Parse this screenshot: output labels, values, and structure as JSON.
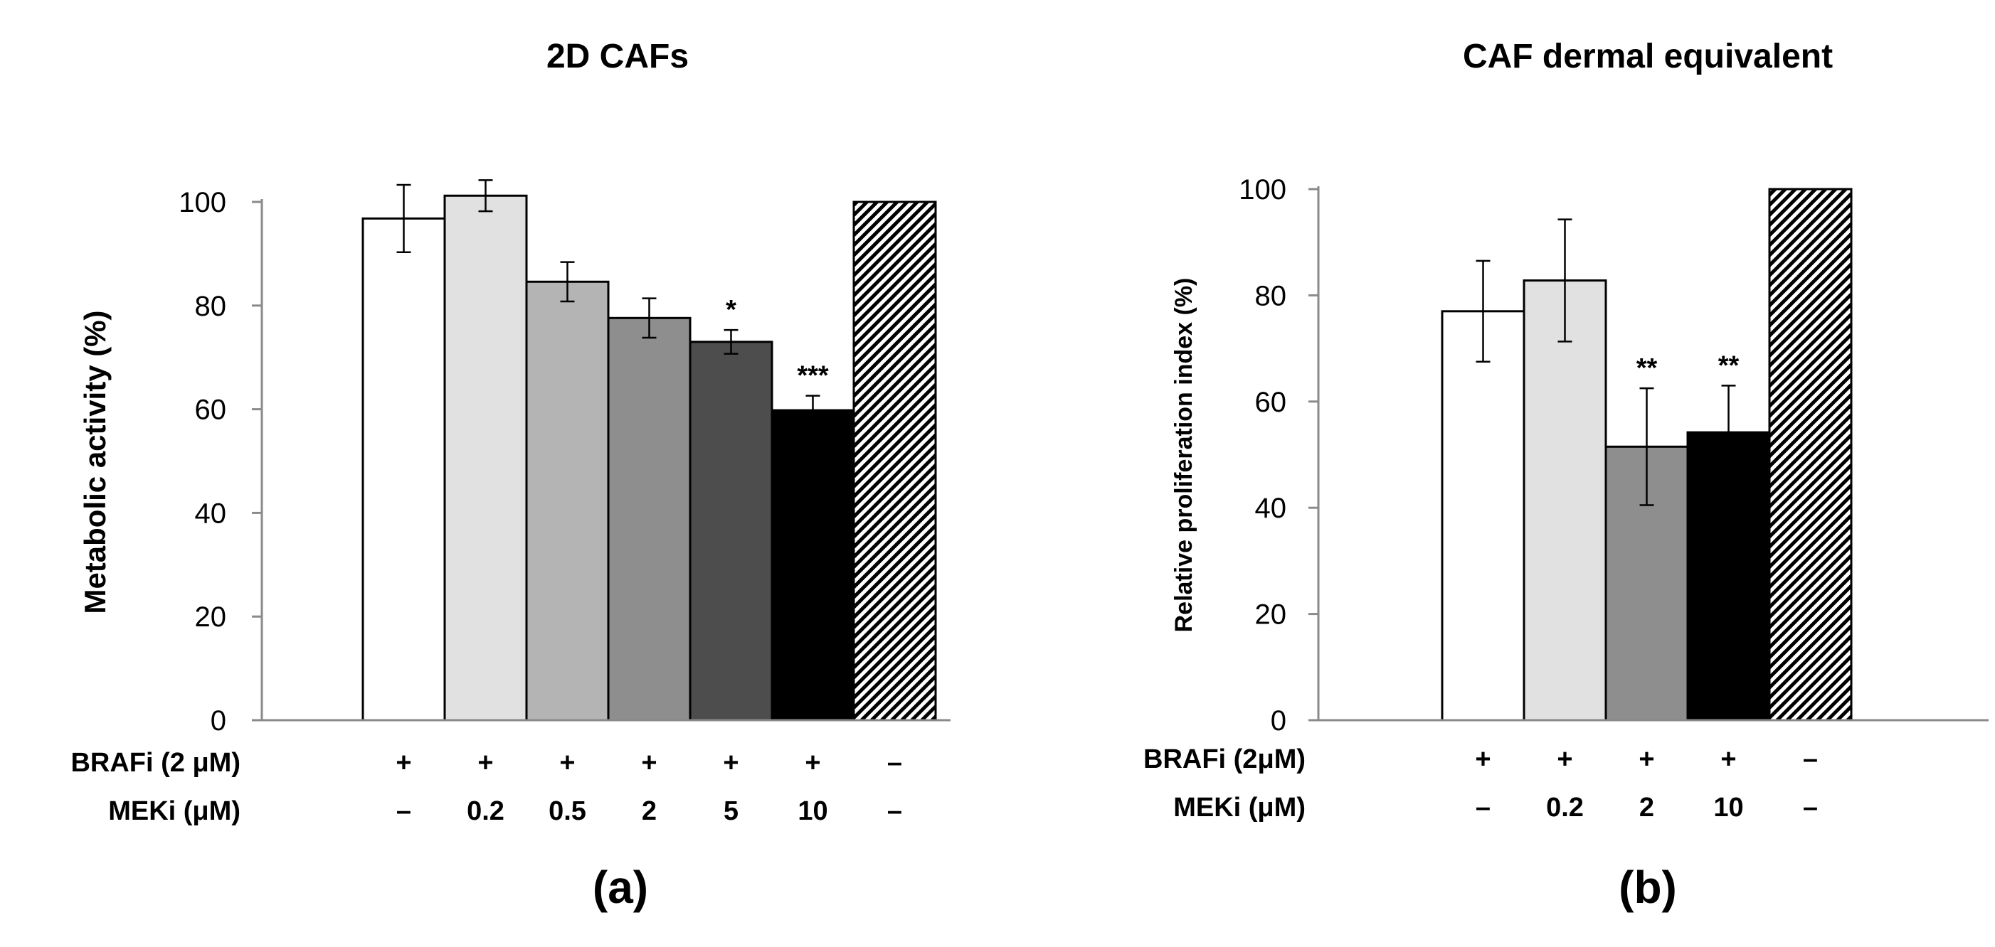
{
  "chart_data": [
    {
      "type": "bar",
      "title": "2D CAFs",
      "ylabel": "Metabolic activity (%)",
      "ylim": [
        0,
        100
      ],
      "yticks": [
        "0",
        "20",
        "40",
        "60",
        "80",
        "100"
      ],
      "panel_label": "(a)",
      "row_labels": [
        "BRAFi (2 μM)",
        "MEKi  (μM)"
      ],
      "braf": [
        "+",
        "+",
        "+",
        "+",
        "+",
        "+",
        "–"
      ],
      "mek": [
        "–",
        "0.2",
        "0.5",
        "2",
        "5",
        "10",
        "–"
      ],
      "values": [
        96.8,
        101.2,
        84.6,
        77.6,
        73.0,
        59.8,
        100
      ],
      "errors": [
        6.5,
        3.0,
        3.8,
        3.8,
        2.3,
        2.8,
        0
      ],
      "significance": [
        "",
        "",
        "",
        "",
        "*",
        "***",
        ""
      ],
      "fills": [
        "#ffffff",
        "#e1e1e1",
        "#b4b4b4",
        "#8e8e8e",
        "#4d4d4d",
        "#000000",
        "hatch"
      ]
    },
    {
      "type": "bar",
      "title": "CAF dermal equivalent",
      "ylabel": "Relative proliferation  index (%)",
      "ylim": [
        0,
        100
      ],
      "yticks": [
        "0",
        "20",
        "40",
        "60",
        "80",
        "100"
      ],
      "panel_label": "(b)",
      "row_labels": [
        "BRAFi (2μM)",
        "MEKi  (μM)"
      ],
      "braf": [
        "+",
        "+",
        "+",
        "+",
        "–"
      ],
      "mek": [
        "–",
        "0.2",
        "2",
        "10",
        "–"
      ],
      "values": [
        77.0,
        82.8,
        51.5,
        54.2,
        100
      ],
      "errors": [
        9.5,
        11.5,
        11.0,
        8.8,
        0
      ],
      "significance": [
        "",
        "",
        "**",
        "**",
        ""
      ],
      "fills": [
        "#ffffff",
        "#e1e1e1",
        "#8e8e8e",
        "#000000",
        "hatch"
      ]
    }
  ]
}
